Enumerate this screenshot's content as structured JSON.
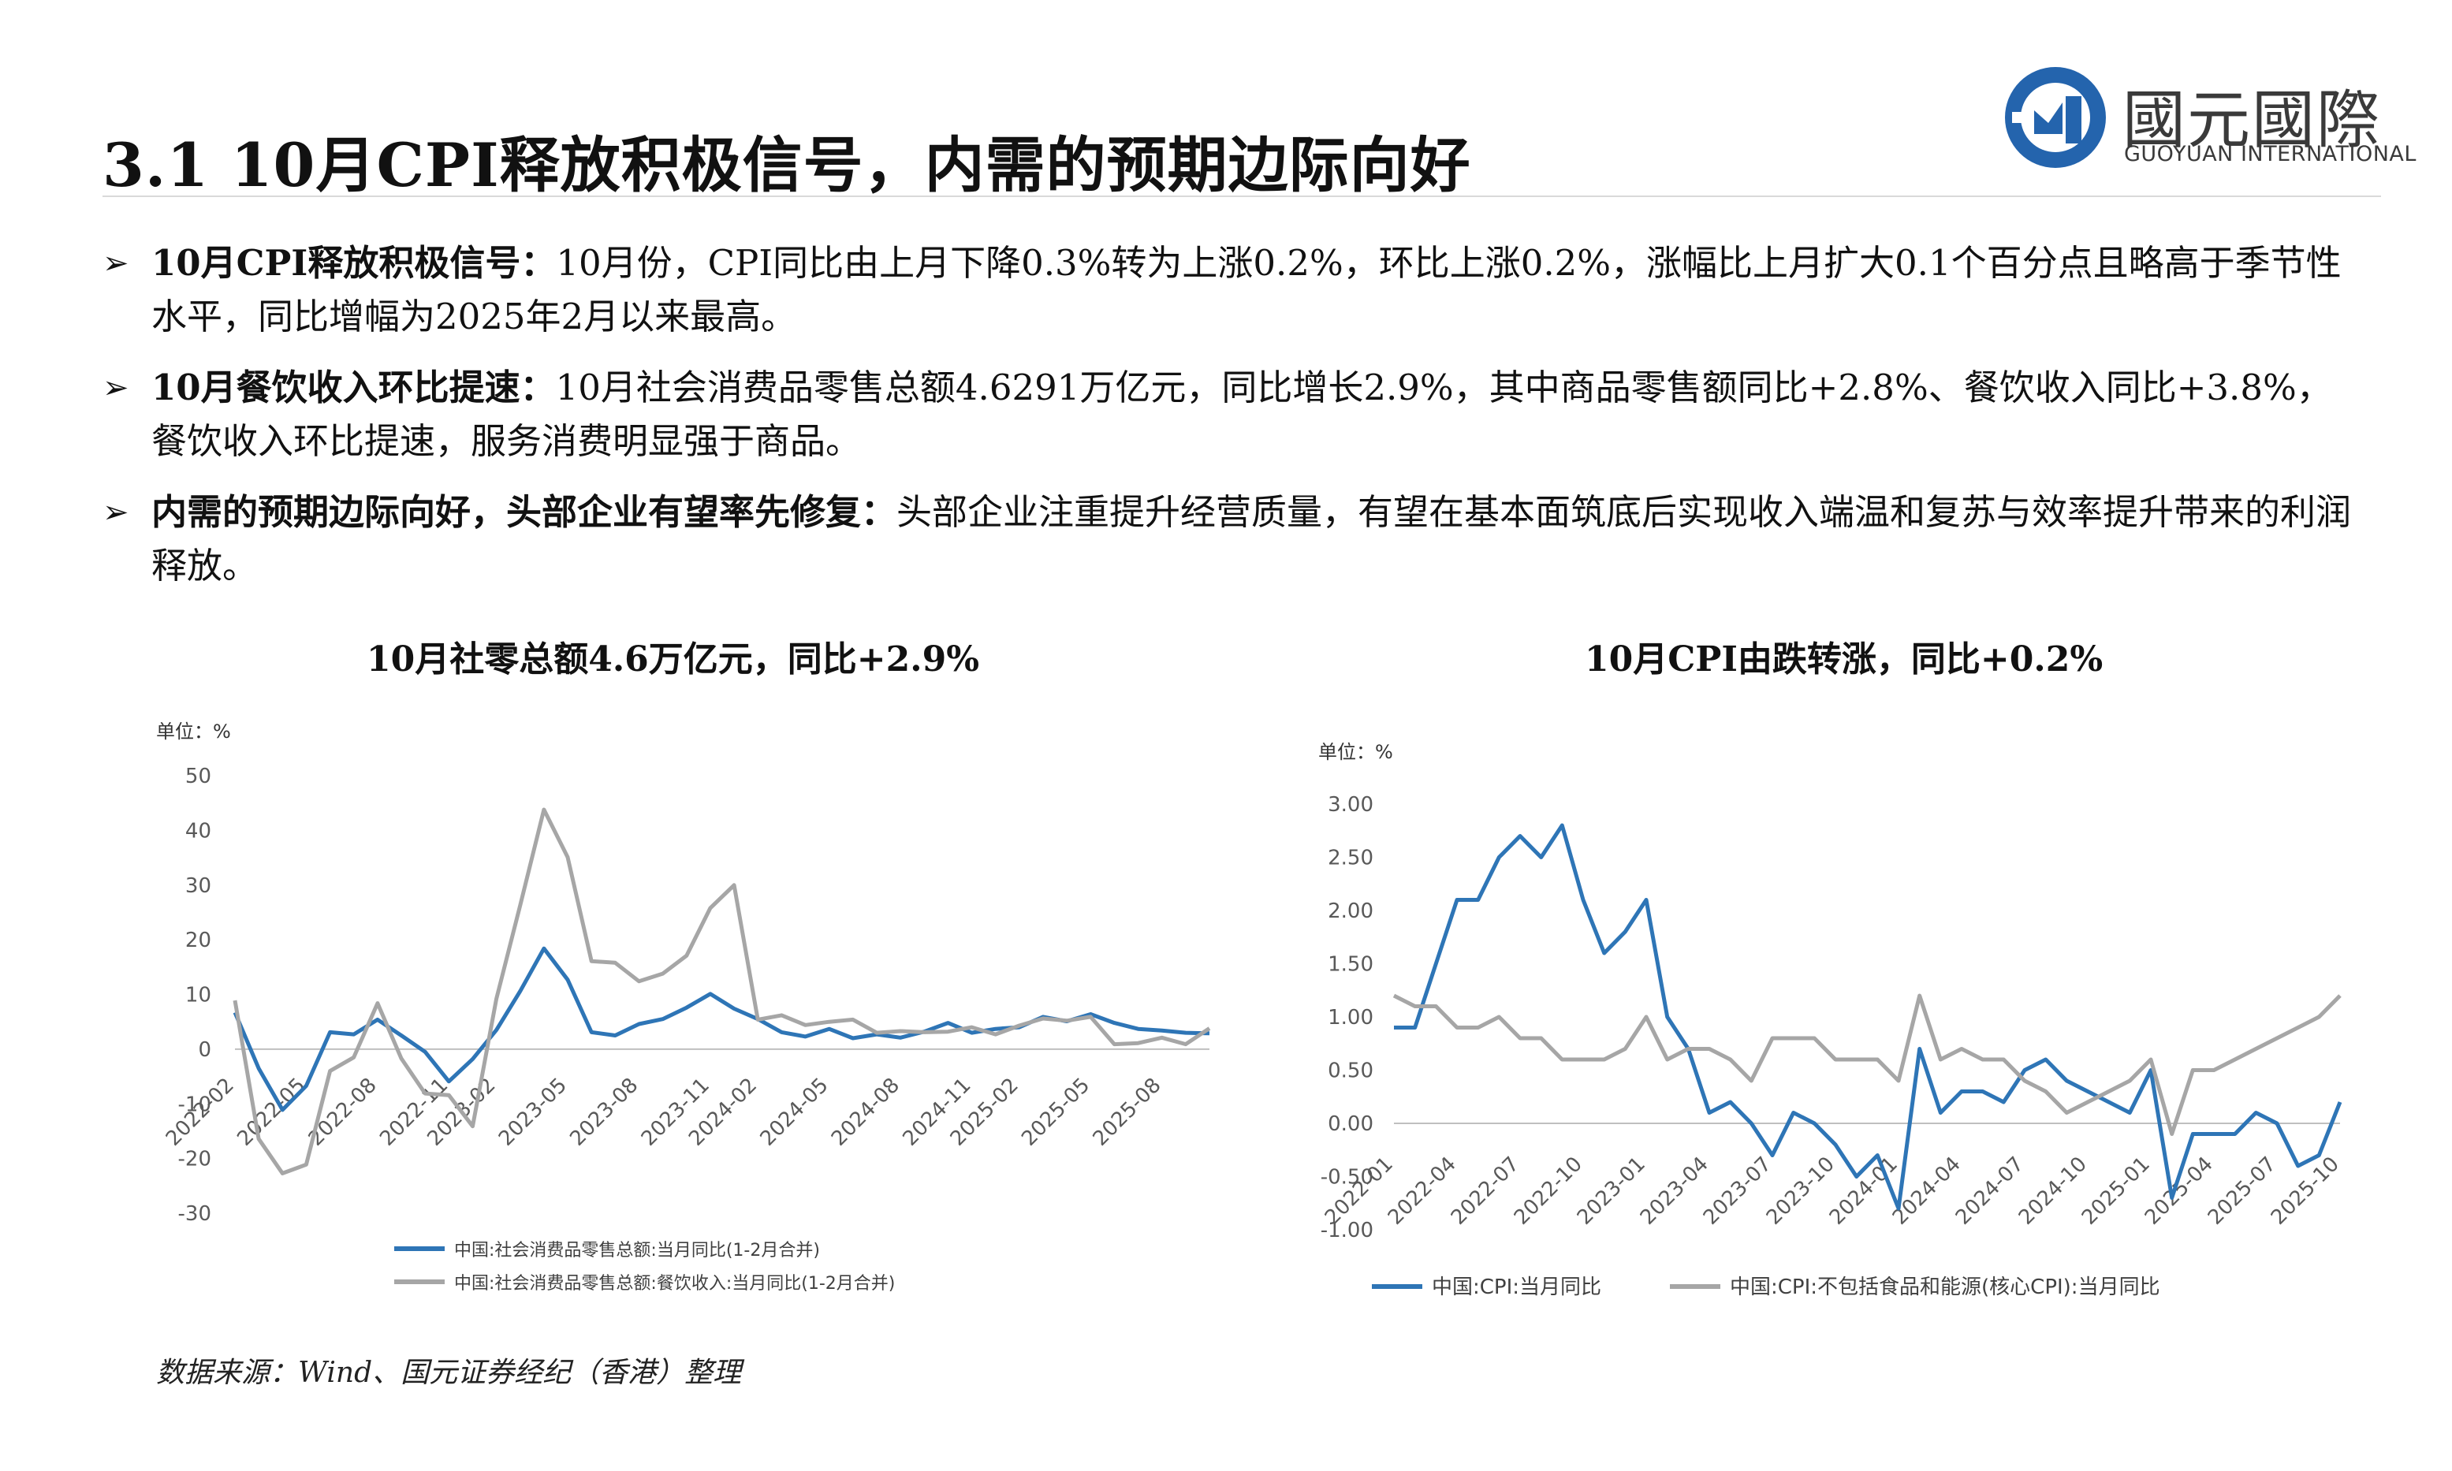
{
  "header": {
    "title": "3.1 10月CPI释放积极信号，内需的预期边际向好",
    "logo_cn": "國元國際",
    "logo_en": "GUOYUAN INTERNATIONAL"
  },
  "bullets": [
    {
      "head": "10月CPI释放积极信号：",
      "body": "10月份，CPI同比由上月下降0.3%转为上涨0.2%，环比上涨0.2%，涨幅比上月扩大0.1个百分点且略高于季节性水平，同比增幅为2025年2月以来最高。"
    },
    {
      "head": "10月餐饮收入环比提速：",
      "body": "10月社会消费品零售总额4.6291万亿元，同比增长2.9%，其中商品零售额同比+2.8%、餐饮收入同比+3.8%，餐饮收入环比提速，服务消费明显强于商品。"
    },
    {
      "head": "内需的预期边际向好，头部企业有望率先修复：",
      "body": "头部企业注重提升经营质量，有望在基本面筑底后实现收入端温和复苏与效率提升带来的利润释放。"
    }
  ],
  "colors": {
    "blue": "#2e75b6",
    "gray": "#a6a6a6"
  },
  "source": "数据来源：Wind、国元证券经纪（香港）整理",
  "chart_data": [
    {
      "type": "line",
      "title": "10月社零总额4.6万亿元，同比+2.9%",
      "unit_label": "单位：%",
      "ylim": [
        -30,
        50
      ],
      "yticks": [
        "50",
        "40",
        "30",
        "20",
        "10",
        "0",
        "-10",
        "-20",
        "-30"
      ],
      "xtick_labels": [
        "2022-02",
        "2022-05",
        "2022-08",
        "2022-11",
        "2023-02",
        "2023-05",
        "2023-08",
        "2023-11",
        "2024-02",
        "2024-05",
        "2024-08",
        "2024-11",
        "2025-02",
        "2025-05",
        "2025-08"
      ],
      "x": [
        "2022-02",
        "2022-03",
        "2022-04",
        "2022-05",
        "2022-06",
        "2022-07",
        "2022-08",
        "2022-09",
        "2022-10",
        "2022-11",
        "2022-12",
        "2023-02",
        "2023-03",
        "2023-04",
        "2023-05",
        "2023-06",
        "2023-07",
        "2023-08",
        "2023-09",
        "2023-10",
        "2023-11",
        "2023-12",
        "2024-02",
        "2024-03",
        "2024-04",
        "2024-05",
        "2024-06",
        "2024-07",
        "2024-08",
        "2024-09",
        "2024-10",
        "2024-11",
        "2024-12",
        "2025-02",
        "2025-03",
        "2025-04",
        "2025-05",
        "2025-06",
        "2025-07",
        "2025-08",
        "2025-09",
        "2025-10"
      ],
      "grid": false,
      "legend_position": "bottom",
      "series": [
        {
          "name": "中国:社会消费品零售总额:当月同比(1-2月合并)",
          "color": "#2e75b6",
          "values": [
            6.7,
            -3.5,
            -11.1,
            -6.7,
            3.1,
            2.7,
            5.4,
            2.5,
            -0.5,
            -5.9,
            -1.8,
            3.5,
            10.6,
            18.4,
            12.7,
            3.1,
            2.5,
            4.6,
            5.5,
            7.6,
            10.1,
            7.4,
            5.5,
            3.1,
            2.3,
            3.7,
            2.0,
            2.7,
            2.1,
            3.2,
            4.8,
            3.0,
            3.7,
            4.0,
            5.9,
            5.1,
            6.4,
            4.8,
            3.7,
            3.4,
            3.0,
            2.9
          ]
        },
        {
          "name": "中国:社会消费品零售总额:餐饮收入:当月同比(1-2月合并)",
          "color": "#a6a6a6",
          "values": [
            8.9,
            -16.4,
            -22.7,
            -21.1,
            -4.0,
            -1.5,
            8.4,
            -1.7,
            -8.1,
            -8.4,
            -14.1,
            9.2,
            26.3,
            43.8,
            35.1,
            16.1,
            15.8,
            12.4,
            13.8,
            17.1,
            25.8,
            30.0,
            5.4,
            6.2,
            4.4,
            5.0,
            5.4,
            3.0,
            3.3,
            3.1,
            3.2,
            4.0,
            2.7,
            4.3,
            5.6,
            5.2,
            5.9,
            0.9,
            1.1,
            2.1,
            0.9,
            3.8
          ]
        }
      ]
    },
    {
      "type": "line",
      "title": "10月CPI由跌转涨，同比+0.2%",
      "unit_label": "单位：%",
      "ylim": [
        -1.0,
        3.0
      ],
      "yticks": [
        "3.00",
        "2.50",
        "2.00",
        "1.50",
        "1.00",
        "0.50",
        "0.00",
        "-0.50",
        "-1.00"
      ],
      "xtick_labels": [
        "2022-01",
        "2022-04",
        "2022-07",
        "2022-10",
        "2023-01",
        "2023-04",
        "2023-07",
        "2023-10",
        "2024-01",
        "2024-04",
        "2024-07",
        "2024-10",
        "2025-01",
        "2025-04",
        "2025-07",
        "2025-10"
      ],
      "x": [
        "2022-01",
        "2022-02",
        "2022-03",
        "2022-04",
        "2022-05",
        "2022-06",
        "2022-07",
        "2022-08",
        "2022-09",
        "2022-10",
        "2022-11",
        "2022-12",
        "2023-01",
        "2023-02",
        "2023-03",
        "2023-04",
        "2023-05",
        "2023-06",
        "2023-07",
        "2023-08",
        "2023-09",
        "2023-10",
        "2023-11",
        "2023-12",
        "2024-01",
        "2024-02",
        "2024-03",
        "2024-04",
        "2024-05",
        "2024-06",
        "2024-07",
        "2024-08",
        "2024-09",
        "2024-10",
        "2024-11",
        "2024-12",
        "2025-01",
        "2025-02",
        "2025-03",
        "2025-04",
        "2025-05",
        "2025-06",
        "2025-07",
        "2025-08",
        "2025-09",
        "2025-10"
      ],
      "grid": false,
      "legend_position": "bottom",
      "series": [
        {
          "name": "中国:CPI:当月同比",
          "color": "#2e75b6",
          "values": [
            0.9,
            0.9,
            1.5,
            2.1,
            2.1,
            2.5,
            2.7,
            2.5,
            2.8,
            2.1,
            1.6,
            1.8,
            2.1,
            1.0,
            0.7,
            0.1,
            0.2,
            0.0,
            -0.3,
            0.1,
            0.0,
            -0.2,
            -0.5,
            -0.3,
            -0.8,
            0.7,
            0.1,
            0.3,
            0.3,
            0.2,
            0.5,
            0.6,
            0.4,
            0.3,
            0.2,
            0.1,
            0.5,
            -0.7,
            -0.1,
            -0.1,
            -0.1,
            0.1,
            0.0,
            -0.4,
            -0.3,
            0.2
          ]
        },
        {
          "name": "中国:CPI:不包括食品和能源(核心CPI):当月同比",
          "color": "#a6a6a6",
          "values": [
            1.2,
            1.1,
            1.1,
            0.9,
            0.9,
            1.0,
            0.8,
            0.8,
            0.6,
            0.6,
            0.6,
            0.7,
            1.0,
            0.6,
            0.7,
            0.7,
            0.6,
            0.4,
            0.8,
            0.8,
            0.8,
            0.6,
            0.6,
            0.6,
            0.4,
            1.2,
            0.6,
            0.7,
            0.6,
            0.6,
            0.4,
            0.3,
            0.1,
            0.2,
            0.3,
            0.4,
            0.6,
            -0.1,
            0.5,
            0.5,
            0.6,
            0.7,
            0.8,
            0.9,
            1.0,
            1.2
          ]
        }
      ]
    }
  ]
}
